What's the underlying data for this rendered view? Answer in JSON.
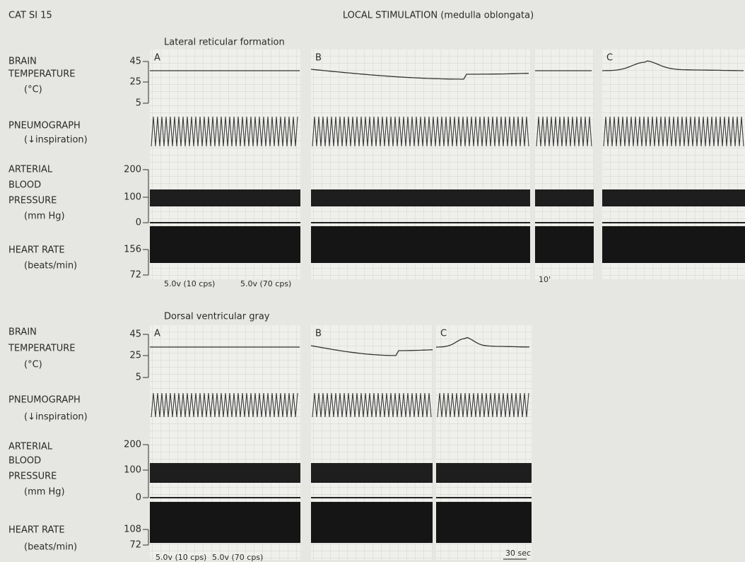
{
  "figure": {
    "id": "CAT SI 15",
    "title": "LOCAL STIMULATION (medulla oblongata)",
    "rows": [
      {
        "site": "Lateral reticular formation",
        "channels": [
          {
            "label": [
              "BRAIN",
              "TEMPERATURE",
              "(°C)"
            ],
            "ticks": [
              45,
              25,
              5
            ]
          },
          {
            "label": [
              "PNEUMOGRAPH",
              "(↓inspiration)"
            ]
          },
          {
            "label": [
              "ARTERIAL",
              "BLOOD",
              "PRESSURE",
              "(mm Hg)"
            ],
            "ticks": [
              200,
              100,
              0
            ]
          },
          {
            "label": [
              "HEART RATE",
              "(beats/min)"
            ],
            "ticks": [
              156,
              72
            ]
          }
        ],
        "panels": [
          "A",
          "B",
          "C"
        ],
        "stimuli": [
          "5.0v (10 cps)",
          "5.0v (70 cps)"
        ],
        "marks": [
          "10'"
        ]
      },
      {
        "site": "Dorsal ventricular gray",
        "channels": [
          {
            "label": [
              "BRAIN",
              "TEMPERATURE",
              "(°C)"
            ],
            "ticks": [
              45,
              25,
              5
            ]
          },
          {
            "label": [
              "PNEUMOGRAPH",
              "(↓inspiration)"
            ]
          },
          {
            "label": [
              "ARTERIAL",
              "BLOOD",
              "PRESSURE",
              "(mm Hg)"
            ],
            "ticks": [
              200,
              100,
              0
            ]
          },
          {
            "label": [
              "HEART RATE",
              "(beats/min)"
            ],
            "ticks": [
              108,
              72
            ]
          }
        ],
        "panels": [
          "A",
          "B",
          "C"
        ],
        "stimuli": [
          "5.0v (10 cps)",
          "5.0v (70 cps)"
        ],
        "marks": [
          "30 sec"
        ]
      }
    ]
  }
}
